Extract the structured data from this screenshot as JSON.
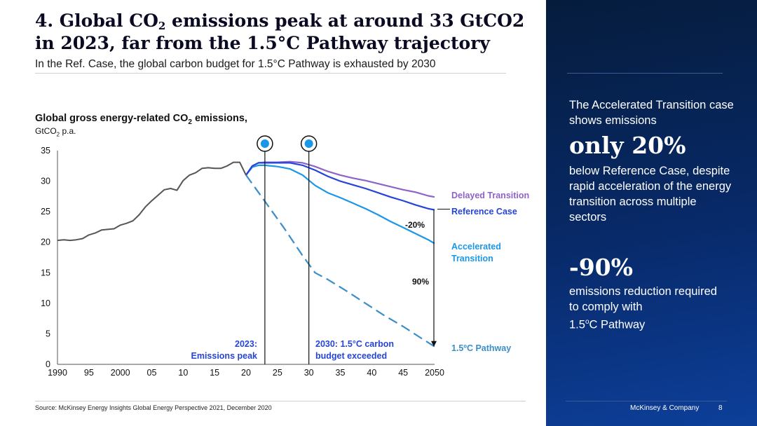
{
  "header": {
    "title_a": "4. Global CO",
    "title_sub": "2",
    "title_b": " emissions peak at around 33 GtCO2",
    "title_line2": "in 2023, far from the 1.5°C Pathway trajectory",
    "subtitle": "In the Ref. Case, the global carbon budget for 1.5°C Pathway is exhausted by 2030"
  },
  "chart_header": {
    "title_a": "Global gross energy-related CO",
    "title_sub": "2",
    "title_b": " emissions,",
    "unit_a": "GtCO",
    "unit_sub": "2",
    "unit_b": " p.a."
  },
  "annotations": {
    "peak_line1": "2023:",
    "peak_line2": "Emissions peak",
    "budget_line1": "2030: 1.5°C carbon",
    "budget_line2": "budget exceeded",
    "delta_20": "-20%",
    "delta_90": "90%"
  },
  "right_panel": {
    "intro": "The Accelerated Transition case shows emissions",
    "highlight1": "only 20%",
    "detail1": "below Reference Case, despite rapid acceleration of the energy transition across multiple sectors",
    "highlight2": "-90%",
    "detail2a": "emissions reduction required to comply with",
    "detail2b": "1.5",
    "detail2c": "o",
    "detail2d": "C Pathway"
  },
  "footer": {
    "source": "Source: McKinsey Energy Insights Global Energy Perspective 2021, December 2020",
    "brand": "McKinsey & Company",
    "page": "8"
  },
  "colors": {
    "delayed": "#8e63c9",
    "reference": "#2544d9",
    "accelerated": "#1b97e8",
    "pathway": "#3b8ec8",
    "history": "#555555",
    "annotation": "#2544d9"
  },
  "chart_data": {
    "type": "line",
    "title": "Global gross energy-related CO2 emissions, GtCO2 p.a.",
    "xlabel": "",
    "ylabel": "GtCO2 p.a.",
    "xlim": [
      1990,
      2050
    ],
    "ylim": [
      0,
      35
    ],
    "x_ticks": [
      1990,
      1995,
      2000,
      2005,
      2010,
      2015,
      2020,
      2025,
      2030,
      2035,
      2040,
      2045,
      2050
    ],
    "x_tick_labels": [
      "1990",
      "95",
      "2000",
      "05",
      "10",
      "15",
      "20",
      "25",
      "30",
      "35",
      "40",
      "45",
      "2050"
    ],
    "y_ticks": [
      0,
      5,
      10,
      15,
      20,
      25,
      30,
      35
    ],
    "markers": [
      2023,
      2030
    ],
    "series": [
      {
        "name": "Historical",
        "style": "solid",
        "x": [
          1990,
          1991,
          1992,
          1993,
          1994,
          1995,
          1996,
          1997,
          1998,
          1999,
          2000,
          2001,
          2002,
          2003,
          2004,
          2005,
          2006,
          2007,
          2008,
          2009,
          2010,
          2011,
          2012,
          2013,
          2014,
          2015,
          2016,
          2017,
          2018,
          2019,
          2020
        ],
        "values": [
          20.3,
          20.4,
          20.3,
          20.4,
          20.6,
          21.2,
          21.5,
          22.0,
          22.1,
          22.2,
          22.8,
          23.1,
          23.5,
          24.5,
          25.8,
          26.8,
          27.7,
          28.6,
          28.8,
          28.5,
          30.1,
          31.0,
          31.4,
          32.1,
          32.2,
          32.1,
          32.1,
          32.5,
          33.1,
          33.1,
          31.0
        ]
      },
      {
        "name": "Delayed Transition",
        "style": "solid",
        "x": [
          2020,
          2021,
          2022,
          2023,
          2025,
          2027,
          2029,
          2031,
          2033,
          2035,
          2037,
          2039,
          2041,
          2043,
          2045,
          2047,
          2049,
          2050
        ],
        "values": [
          31.0,
          32.5,
          33.0,
          33.1,
          33.1,
          33.2,
          33.0,
          32.4,
          31.6,
          31.0,
          30.5,
          30.1,
          29.6,
          29.1,
          28.6,
          28.2,
          27.6,
          27.4
        ]
      },
      {
        "name": "Reference Case",
        "style": "solid",
        "x": [
          2020,
          2021,
          2022,
          2023,
          2025,
          2027,
          2029,
          2031,
          2033,
          2035,
          2037,
          2039,
          2041,
          2043,
          2045,
          2047,
          2049,
          2050
        ],
        "values": [
          31.0,
          32.5,
          33.0,
          33.0,
          33.0,
          33.0,
          32.6,
          31.8,
          30.8,
          30.0,
          29.4,
          28.8,
          28.1,
          27.4,
          26.8,
          26.1,
          25.5,
          25.3
        ]
      },
      {
        "name": "Accelerated Transition",
        "style": "solid",
        "x": [
          2020,
          2021,
          2022,
          2023,
          2025,
          2027,
          2029,
          2031,
          2033,
          2035,
          2037,
          2039,
          2041,
          2043,
          2045,
          2047,
          2049,
          2050
        ],
        "values": [
          31.0,
          32.3,
          32.6,
          32.6,
          32.4,
          32.0,
          31.0,
          29.3,
          28.1,
          27.3,
          26.4,
          25.5,
          24.5,
          23.4,
          22.4,
          21.4,
          20.4,
          19.8
        ]
      },
      {
        "name": "1.5°C Pathway",
        "style": "dashed",
        "x": [
          2020,
          2023,
          2026,
          2029,
          2031,
          2033,
          2036,
          2039,
          2042,
          2045,
          2048,
          2050
        ],
        "values": [
          31.0,
          26.7,
          22.4,
          17.8,
          15.0,
          13.9,
          12.0,
          10.0,
          8.0,
          6.2,
          4.2,
          2.9
        ]
      }
    ],
    "legend": [
      "Delayed Transition",
      "Reference Case",
      "Accelerated Transition",
      "1.5ºC Pathway"
    ],
    "legend_placement": "right, inline at series ends"
  }
}
